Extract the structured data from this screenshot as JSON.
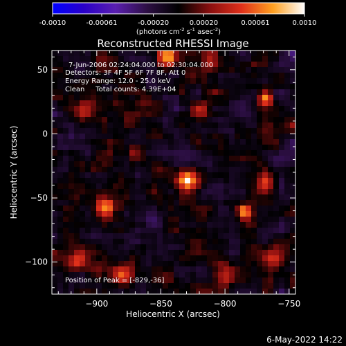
{
  "colors": {
    "background": "#000000",
    "colormap": [
      "#0000ff",
      "#2a00c8",
      "#5a1fb0",
      "#2d0f44",
      "#000000",
      "#8a0f0f",
      "#e0301a",
      "#ffa020",
      "#ffffff"
    ]
  },
  "colorbar": {
    "ticks": [
      "-0.0010",
      "-0.00061",
      "-0.00020",
      "0.00020",
      "0.00061",
      "0.0010"
    ],
    "tick_values": [
      -0.001,
      -0.00061,
      -0.0002,
      0.0002,
      0.00061,
      0.001
    ],
    "range": [
      -0.001,
      0.001
    ],
    "unit_parts": {
      "open": "(photons cm",
      "e1": "-2",
      "mid1": " s",
      "e2": "-1",
      "mid2": " asec",
      "e3": "-2",
      "close": ")"
    }
  },
  "chart_data": {
    "type": "heatmap",
    "title": "Reconstructed RHESSI Image",
    "xlabel": "Heliocentric X (arcsec)",
    "ylabel": "Heliocentric Y (arcsec)",
    "xlim": [
      -935,
      -745
    ],
    "ylim": [
      -125,
      65
    ],
    "x_ticks": [
      -900,
      -850,
      -800,
      -750
    ],
    "y_ticks": [
      50,
      0,
      -50,
      -100
    ],
    "x_tick_labels": [
      "−900",
      "−850",
      "−800",
      "−750"
    ],
    "y_tick_labels": [
      "50",
      "0",
      "−50",
      "−100"
    ],
    "annotations": [
      "7-Jun-2006 02:24:04.000 to 02:30:04.000",
      "Detectors: 3F 4F 5F 6F 7F 8F, Att 0",
      "Energy Range: 12.0 - 25.0 keV",
      "Clean     Total counts: 4.39E+04"
    ],
    "peak_label": "Position of Peak = [-829,-36]",
    "peak": [
      -829,
      -36
    ],
    "sources": [
      {
        "x": -829,
        "y": -36,
        "amp": 1.0,
        "sigma": 5
      },
      {
        "x": -768,
        "y": 28,
        "amp": 0.82,
        "sigma": 4
      },
      {
        "x": -785,
        "y": -60,
        "amp": 0.75,
        "sigma": 4
      },
      {
        "x": -893,
        "y": -57,
        "amp": 0.7,
        "sigma": 5
      },
      {
        "x": -845,
        "y": 60,
        "amp": 0.75,
        "sigma": 5
      },
      {
        "x": -768,
        "y": -38,
        "amp": 0.55,
        "sigma": 5
      },
      {
        "x": -880,
        "y": -110,
        "amp": 0.55,
        "sigma": 6
      },
      {
        "x": -910,
        "y": 18,
        "amp": 0.4,
        "sigma": 5
      },
      {
        "x": -915,
        "y": -100,
        "amp": 0.45,
        "sigma": 6
      },
      {
        "x": -820,
        "y": 20,
        "amp": 0.42,
        "sigma": 5
      },
      {
        "x": -800,
        "y": -110,
        "amp": 0.4,
        "sigma": 6
      },
      {
        "x": -760,
        "y": -95,
        "amp": 0.4,
        "sigma": 6
      },
      {
        "x": -870,
        "y": -15,
        "amp": 0.3,
        "sigma": 5
      },
      {
        "x": -810,
        "y": 55,
        "amp": 0.35,
        "sigma": 5
      }
    ]
  },
  "timestamp": "6-May-2022 14:22"
}
